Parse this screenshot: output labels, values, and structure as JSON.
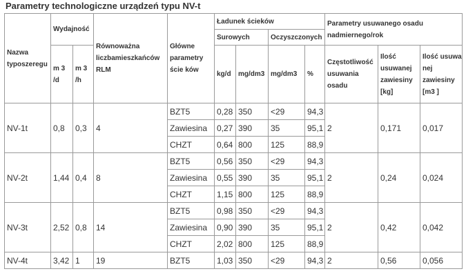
{
  "title": "Parametry technologiczne urządzeń typu NV-t",
  "headers": {
    "nazwa": "Nazwa typoszeregu",
    "wydajnosc": "Wydajność",
    "m3d": "m 3 /d",
    "m3h": "m 3 /h",
    "rlm": "Równoważna liczbamieszkańców RLM",
    "glowne": "Główne parametry ście ków",
    "ladunek": "Ładunek ścieków",
    "surowych": "Surowych",
    "oczyszczonych": "Oczyszczonych",
    "kgd": "kg/d",
    "mgdm3_1": "mg/dm3",
    "mgdm3_2": "mg/dm3",
    "pct": "%",
    "parametry_osadu": "Parametry usuwanego osadu nadmiernego/rok",
    "czestotliwosc": "Częstotliwość usuwania osadu",
    "ilosc_kg": "Ilość usuwanej zawiesiny [kg]",
    "ilosc_m3": "Ilość usuwa nej zawiesiny [m3 ]"
  },
  "groups": [
    {
      "name": "NV-1t",
      "m3d": "0,8",
      "m3h": "0,3",
      "rlm": "4",
      "freq": "2",
      "kg": "0,171",
      "m3": "0,017",
      "rows": [
        {
          "param": "BZT5",
          "kgd": "0,28",
          "mg1": "350",
          "mg2": "<29",
          "pct": "94,3"
        },
        {
          "param": "Zawiesina",
          "kgd": "0,27",
          "mg1": "390",
          "mg2": "35",
          "pct": "95,1"
        },
        {
          "param": "CHZT",
          "kgd": "0,64",
          "mg1": "800",
          "mg2": "125",
          "pct": "88,9"
        }
      ]
    },
    {
      "name": "NV-2t",
      "m3d": "1,44",
      "m3h": "0,4",
      "rlm": "8",
      "freq": "2",
      "kg": "0,24",
      "m3": "0,024",
      "rows": [
        {
          "param": "BZT5",
          "kgd": "0,56",
          "mg1": "350",
          "mg2": "<29",
          "pct": "94,3"
        },
        {
          "param": "Zawiesina",
          "kgd": "0,55",
          "mg1": "390",
          "mg2": "35",
          "pct": "95,1"
        },
        {
          "param": "CHZT",
          "kgd": "1,15",
          "mg1": "800",
          "mg2": "125",
          "pct": "88,9"
        }
      ]
    },
    {
      "name": "NV-3t",
      "m3d": "2,52",
      "m3h": "0,8",
      "rlm": "14",
      "freq": "2",
      "kg": "0,42",
      "m3": "0,042",
      "rows": [
        {
          "param": "BZT5",
          "kgd": "0,98",
          "mg1": "350",
          "mg2": "<29",
          "pct": "94,3"
        },
        {
          "param": "Zawiesina",
          "kgd": "0,90",
          "mg1": "390",
          "mg2": "35",
          "pct": "95,1"
        },
        {
          "param": "CHZT",
          "kgd": "2,02",
          "mg1": "800",
          "mg2": "125",
          "pct": "88,9"
        }
      ]
    },
    {
      "name": "NV-4t",
      "m3d": "3,42",
      "m3h": "1",
      "rlm": "19",
      "freq": "2",
      "kg": "0,56",
      "m3": "0,056",
      "rows": [
        {
          "param": "BZT5",
          "kgd": "1,03",
          "mg1": "350",
          "mg2": "<29",
          "pct": "94,3"
        }
      ]
    }
  ]
}
